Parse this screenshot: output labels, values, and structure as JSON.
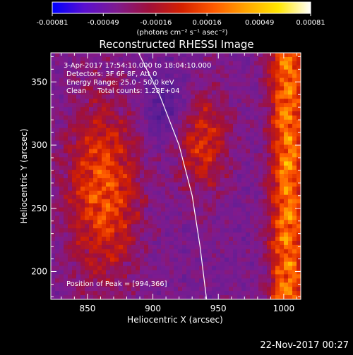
{
  "timestamp": "22-Nov-2017 00:27",
  "colorbar": {
    "ticks": [
      "-0.00081",
      "-0.00049",
      "-0.00016",
      "0.00016",
      "0.00049",
      "0.00081"
    ],
    "unit_label": "(photons cm⁻² s⁻¹ asec⁻²)",
    "range": [
      -0.00081,
      0.00081
    ],
    "colors": [
      "#0000ff",
      "#5a0fd0",
      "#7f1b8f",
      "#a0103a",
      "#d42000",
      "#ff5a00",
      "#ffa500",
      "#ffe600",
      "#ffffff"
    ]
  },
  "chart_data": {
    "type": "heatmap",
    "title": "Reconstructed RHESSI Image",
    "xlabel": "Heliocentric X (arcsec)",
    "ylabel": "Heliocentric Y (arcsec)",
    "xlim": [
      822,
      1013
    ],
    "ylim": [
      178,
      373
    ],
    "xticks": [
      850,
      900,
      950,
      1000
    ],
    "yticks": [
      200,
      250,
      300,
      350
    ],
    "limb_curve_x_at_y": [
      [
        889,
        373
      ],
      [
        905,
        340
      ],
      [
        920,
        300
      ],
      [
        930,
        260
      ],
      [
        936,
        220
      ],
      [
        941,
        178
      ]
    ],
    "annotations": [
      "3-Apr-2017 17:54:10.000 to 18:04:10.000",
      "Detectors: 3F 6F 8F, Att 0",
      "Energy Range: 25.0 - 50.0 keV",
      "Clean     Total counts: 1.28E+04"
    ],
    "peak_label": "Position of Peak = [994,366]",
    "peak": [
      994,
      366
    ]
  }
}
